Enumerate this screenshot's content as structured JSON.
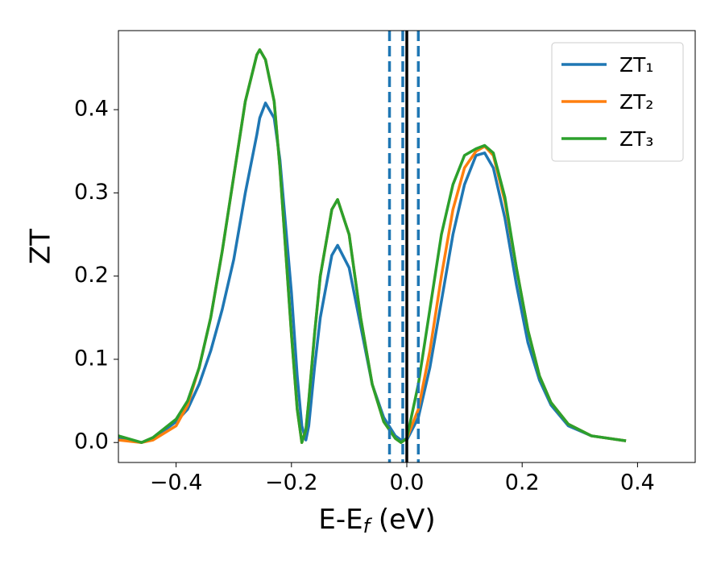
{
  "chart_data": {
    "type": "line",
    "xlabel": [
      "E-E",
      "f",
      " (eV)"
    ],
    "ylabel": "ZT",
    "x": [
      -0.5,
      -0.46,
      -0.44,
      -0.4,
      -0.38,
      -0.36,
      -0.34,
      -0.32,
      -0.3,
      -0.28,
      -0.26,
      -0.255,
      -0.245,
      -0.23,
      -0.22,
      -0.2,
      -0.19,
      -0.182,
      -0.175,
      -0.17,
      -0.16,
      -0.15,
      -0.13,
      -0.12,
      -0.1,
      -0.08,
      -0.06,
      -0.04,
      -0.02,
      -0.01,
      0,
      0.02,
      0.04,
      0.06,
      0.08,
      0.1,
      0.12,
      0.135,
      0.15,
      0.17,
      0.19,
      0.21,
      0.23,
      0.25,
      0.28,
      0.32,
      0.38
    ],
    "series": [
      {
        "name": "ZT₁",
        "color": "#1f77b4",
        "values": [
          0.005,
          0,
          0.005,
          0.025,
          0.04,
          0.07,
          0.11,
          0.16,
          0.22,
          0.3,
          0.37,
          0.39,
          0.408,
          0.39,
          0.34,
          0.18,
          0.08,
          0.02,
          0.003,
          0.02,
          0.09,
          0.15,
          0.225,
          0.237,
          0.21,
          0.14,
          0.07,
          0.03,
          0.008,
          0.003,
          0.003,
          0.03,
          0.09,
          0.17,
          0.25,
          0.31,
          0.345,
          0.348,
          0.33,
          0.27,
          0.19,
          0.12,
          0.075,
          0.045,
          0.02,
          0.008,
          0.002
        ]
      },
      {
        "name": "ZT₂",
        "color": "#ff7f0e",
        "values": [
          0.003,
          0,
          0.003,
          0.02,
          0.045,
          0.09,
          0.15,
          0.23,
          0.32,
          0.41,
          0.466,
          0.472,
          0.46,
          0.41,
          0.33,
          0.13,
          0.04,
          0,
          0.015,
          0.05,
          0.13,
          0.2,
          0.28,
          0.292,
          0.25,
          0.15,
          0.07,
          0.025,
          0.005,
          0,
          0.005,
          0.04,
          0.11,
          0.2,
          0.28,
          0.33,
          0.35,
          0.356,
          0.345,
          0.29,
          0.21,
          0.135,
          0.08,
          0.048,
          0.022,
          0.008,
          0.002
        ]
      },
      {
        "name": "ZT₃",
        "color": "#2ca02c",
        "values": [
          0.008,
          0,
          0.006,
          0.028,
          0.05,
          0.09,
          0.15,
          0.23,
          0.32,
          0.41,
          0.466,
          0.472,
          0.46,
          0.41,
          0.33,
          0.13,
          0.04,
          0,
          0.015,
          0.05,
          0.13,
          0.2,
          0.28,
          0.292,
          0.25,
          0.15,
          0.07,
          0.025,
          0.005,
          0,
          0.005,
          0.07,
          0.16,
          0.25,
          0.31,
          0.345,
          0.353,
          0.357,
          0.348,
          0.295,
          0.21,
          0.135,
          0.08,
          0.048,
          0.022,
          0.008,
          0.002
        ]
      }
    ],
    "vlines": [
      {
        "x": -0.03,
        "color": "#1f77b4",
        "dashed": true
      },
      {
        "x": -0.007,
        "color": "#1f77b4",
        "dashed": true
      },
      {
        "x": 0.02,
        "color": "#1f77b4",
        "dashed": true
      },
      {
        "x": 0,
        "color": "#000000",
        "dashed": false
      }
    ],
    "xlim": [
      -0.5,
      0.5
    ],
    "ylim": [
      -0.024,
      0.495
    ],
    "xticks": [
      {
        "value": -0.4,
        "label": "−0.4"
      },
      {
        "value": -0.2,
        "label": "−0.2"
      },
      {
        "value": 0,
        "label": "0.0"
      },
      0.2,
      0.4
    ],
    "yticks": [
      {
        "value": 0,
        "label": "0.0"
      },
      0.1,
      0.2,
      0.3,
      0.4
    ],
    "grid": false,
    "legend": "upper right"
  }
}
